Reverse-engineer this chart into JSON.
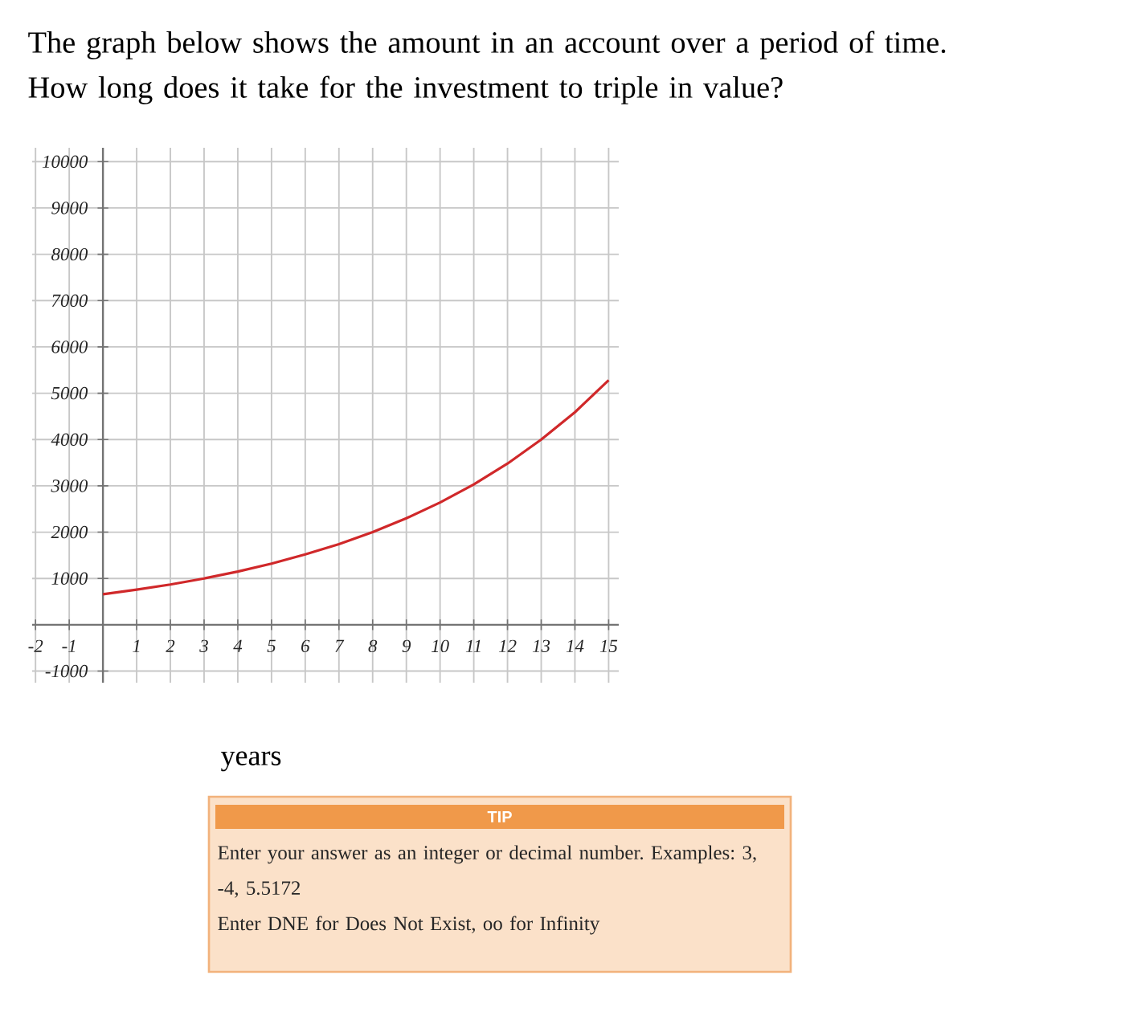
{
  "chart_data": {
    "type": "line",
    "title": "The graph below shows the amount in an account over a period of time. How long does it take for the investment to triple in value?",
    "x": [
      0,
      1,
      2,
      3,
      4,
      5,
      6,
      7,
      8,
      9,
      10,
      11,
      12,
      13,
      14,
      15
    ],
    "values": [
      660,
      760,
      870,
      1000,
      1150,
      1320,
      1520,
      1740,
      2000,
      2300,
      2640,
      3030,
      3480,
      4000,
      4590,
      5280
    ],
    "color": "#d0282a",
    "xlim": [
      -2.1,
      15.3
    ],
    "ylim": [
      -1250,
      10300
    ],
    "xticks": [
      -2,
      -1,
      1,
      2,
      3,
      4,
      5,
      6,
      7,
      8,
      9,
      10,
      11,
      12,
      13,
      14,
      15
    ],
    "yticks": [
      -1000,
      1000,
      2000,
      3000,
      4000,
      5000,
      6000,
      7000,
      8000,
      9000,
      10000
    ],
    "grid": true,
    "annotations": [
      "years",
      "TIP",
      "Enter your answer as an integer or decimal number. Examples: 3, -4, 5.5172",
      "Enter DNE for Does Not Exist, oo for Infinity"
    ]
  }
}
